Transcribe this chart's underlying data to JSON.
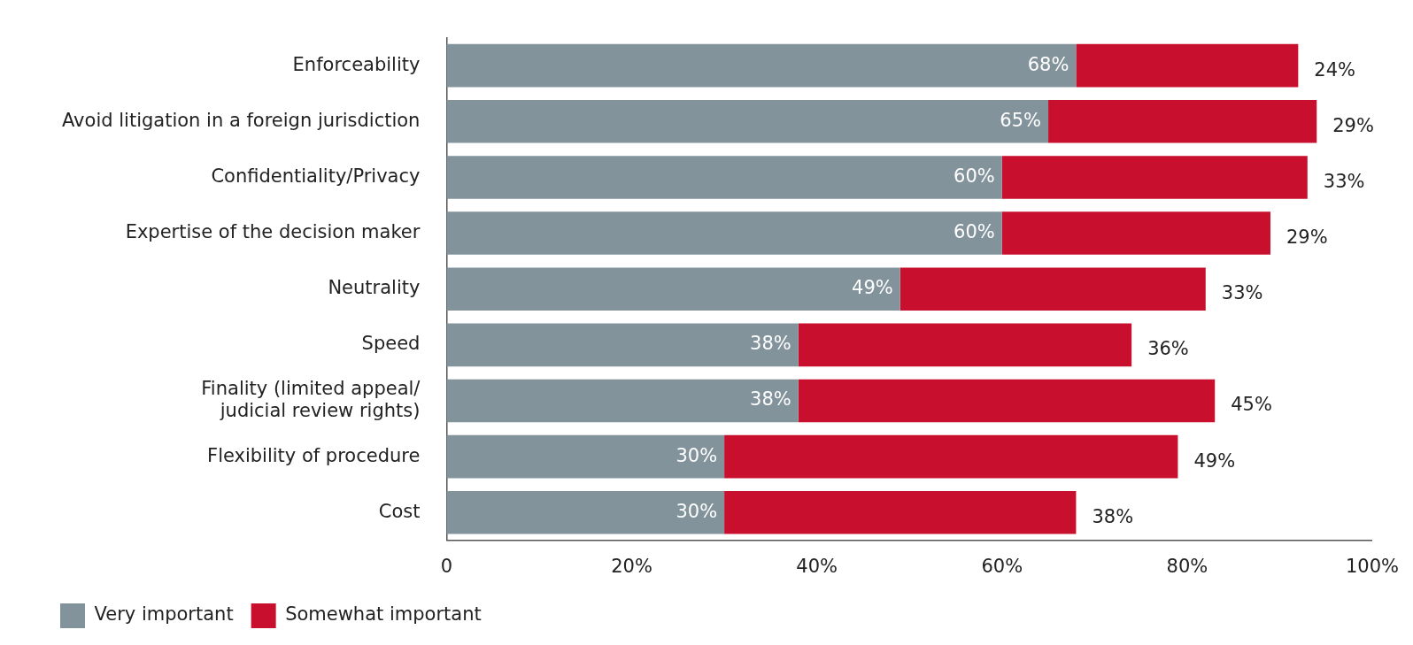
{
  "chart_data": {
    "type": "bar",
    "orientation": "horizontal",
    "stacked": true,
    "categories": [
      "Enforceability",
      "Avoid litigation in a foreign jurisdiction",
      "Confidentiality/Privacy",
      "Expertise of the decision maker",
      "Neutrality",
      "Speed",
      "Finality (limited appeal/\njudicial review rights)",
      "Flexibility of procedure",
      "Cost"
    ],
    "series": [
      {
        "name": "Very important",
        "color": "#82939c",
        "values": [
          68,
          65,
          60,
          60,
          49,
          38,
          38,
          30,
          30
        ],
        "value_labels": [
          "68%",
          "65%",
          "60%",
          "60%",
          "49%",
          "38%",
          "38%",
          "30%",
          "30%"
        ]
      },
      {
        "name": "Somewhat important",
        "color": "#c8102e",
        "values": [
          24,
          29,
          33,
          29,
          33,
          36,
          45,
          49,
          38
        ],
        "value_labels": [
          "24%",
          "29%",
          "33%",
          "29%",
          "33%",
          "36%",
          "45%",
          "49%",
          "38%"
        ]
      }
    ],
    "xlim": [
      0,
      100
    ],
    "xticks": [
      0,
      {
        "value": 20,
        "label": "20%"
      },
      {
        "value": 40,
        "label": "40%"
      },
      {
        "value": 60,
        "label": "60%"
      },
      {
        "value": 80,
        "label": "80%"
      },
      {
        "value": 100,
        "label": "100%"
      }
    ],
    "grid": false,
    "legend": "bottom"
  }
}
